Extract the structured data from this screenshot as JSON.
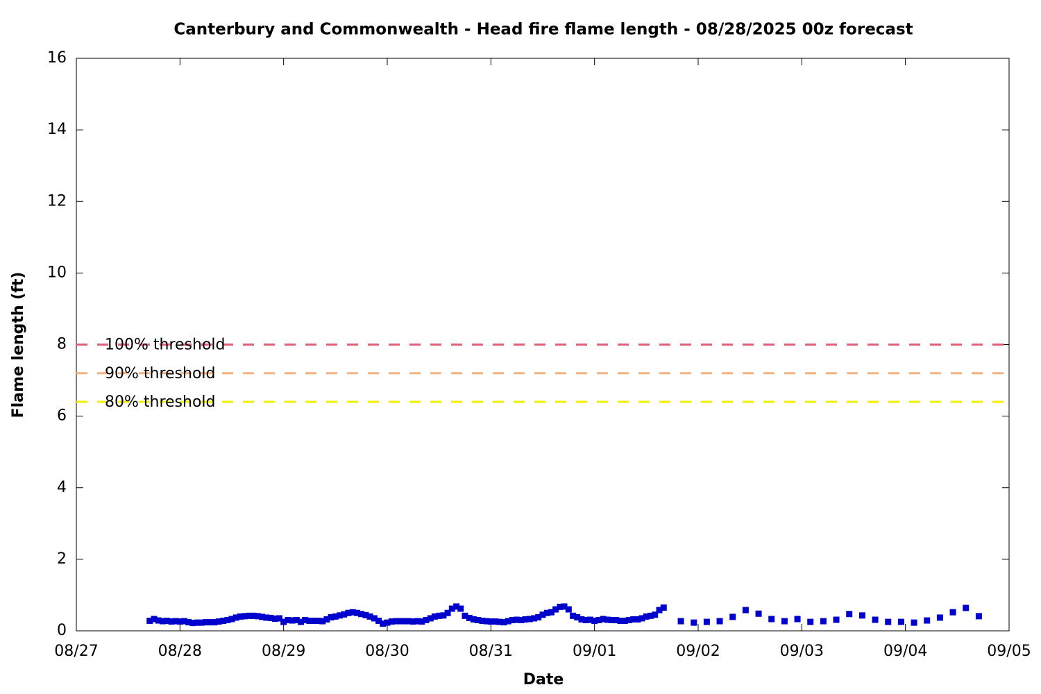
{
  "chart_data": {
    "type": "scatter",
    "title": "Canterbury and Commonwealth - Head fire flame length - 08/28/2025 00z forecast",
    "xlabel": "Date",
    "ylabel": "Flame length (ft)",
    "series": [
      {
        "color": "#0000cc",
        "x": [
          0.708,
          0.75,
          0.792,
          0.833,
          0.875,
          0.917,
          0.958,
          1,
          1.042,
          1.083,
          1.125,
          1.167,
          1.208,
          1.25,
          1.292,
          1.333,
          1.375,
          1.417,
          1.458,
          1.5,
          1.542,
          1.583,
          1.625,
          1.667,
          1.708,
          1.75,
          1.792,
          1.833,
          1.875,
          1.917,
          1.958,
          2,
          2.042,
          2.083,
          2.125,
          2.167,
          2.208,
          2.25,
          2.292,
          2.333,
          2.375,
          2.417,
          2.458,
          2.5,
          2.542,
          2.583,
          2.625,
          2.667,
          2.708,
          2.75,
          2.792,
          2.833,
          2.875,
          2.917,
          2.958,
          3,
          3.042,
          3.083,
          3.125,
          3.167,
          3.208,
          3.25,
          3.292,
          3.333,
          3.375,
          3.417,
          3.458,
          3.5,
          3.542,
          3.583,
          3.625,
          3.667,
          3.708,
          3.75,
          3.792,
          3.833,
          3.875,
          3.917,
          3.958,
          4,
          4.042,
          4.083,
          4.125,
          4.167,
          4.208,
          4.25,
          4.292,
          4.333,
          4.375,
          4.417,
          4.458,
          4.5,
          4.542,
          4.583,
          4.625,
          4.667,
          4.708,
          4.75,
          4.792,
          4.833,
          4.875,
          4.917,
          4.958,
          5,
          5.042,
          5.083,
          5.125,
          5.167,
          5.208,
          5.25,
          5.292,
          5.333,
          5.375,
          5.417,
          5.458,
          5.5,
          5.542,
          5.583,
          5.625,
          5.667,
          5.833,
          5.958,
          6.083,
          6.208,
          6.333,
          6.458,
          6.583,
          6.708,
          6.833,
          6.958,
          7.083,
          7.208,
          7.333,
          7.458,
          7.583,
          7.708,
          7.833,
          7.958,
          8.083,
          8.208,
          8.333,
          8.458,
          8.583,
          8.708
        ],
        "values": [
          0.28,
          0.33,
          0.29,
          0.27,
          0.28,
          0.26,
          0.27,
          0.26,
          0.27,
          0.24,
          0.22,
          0.23,
          0.23,
          0.24,
          0.24,
          0.24,
          0.26,
          0.28,
          0.3,
          0.33,
          0.37,
          0.4,
          0.41,
          0.42,
          0.42,
          0.41,
          0.39,
          0.37,
          0.36,
          0.34,
          0.35,
          0.25,
          0.3,
          0.29,
          0.3,
          0.25,
          0.3,
          0.28,
          0.28,
          0.28,
          0.27,
          0.32,
          0.38,
          0.4,
          0.43,
          0.46,
          0.5,
          0.52,
          0.5,
          0.47,
          0.44,
          0.4,
          0.35,
          0.28,
          0.2,
          0.23,
          0.26,
          0.27,
          0.27,
          0.27,
          0.27,
          0.26,
          0.27,
          0.26,
          0.3,
          0.35,
          0.4,
          0.42,
          0.43,
          0.5,
          0.62,
          0.68,
          0.62,
          0.42,
          0.36,
          0.32,
          0.3,
          0.28,
          0.27,
          0.26,
          0.26,
          0.25,
          0.24,
          0.27,
          0.3,
          0.31,
          0.3,
          0.32,
          0.33,
          0.35,
          0.38,
          0.45,
          0.5,
          0.52,
          0.6,
          0.67,
          0.68,
          0.6,
          0.42,
          0.38,
          0.32,
          0.3,
          0.31,
          0.28,
          0.3,
          0.33,
          0.31,
          0.3,
          0.3,
          0.28,
          0.28,
          0.3,
          0.32,
          0.32,
          0.35,
          0.4,
          0.42,
          0.45,
          0.58,
          0.65,
          0.27,
          0.23,
          0.25,
          0.27,
          0.39,
          0.58,
          0.48,
          0.33,
          0.27,
          0.33,
          0.25,
          0.27,
          0.31,
          0.47,
          0.43,
          0.31,
          0.25,
          0.25,
          0.23,
          0.29,
          0.37,
          0.52,
          0.64,
          0.41
        ]
      }
    ],
    "thresholds": [
      {
        "label": "100% threshold",
        "value": 8,
        "color": "#e0607a"
      },
      {
        "label": "90% threshold",
        "value": 7.2,
        "color": "#f4b482"
      },
      {
        "label": "80% threshold",
        "value": 6.4,
        "color": "#f0f000"
      }
    ],
    "xlim": [
      0,
      9
    ],
    "xticks": [
      {
        "value": 0,
        "label": "08/27"
      },
      {
        "value": 1,
        "label": "08/28"
      },
      {
        "value": 2,
        "label": "08/29"
      },
      {
        "value": 3,
        "label": "08/30"
      },
      {
        "value": 4,
        "label": "08/31"
      },
      {
        "value": 5,
        "label": "09/01"
      },
      {
        "value": 6,
        "label": "09/02"
      },
      {
        "value": 7,
        "label": "09/03"
      },
      {
        "value": 8,
        "label": "09/04"
      },
      {
        "value": 9,
        "label": "09/05"
      }
    ],
    "ylim": [
      0,
      16
    ],
    "yticks": [
      0,
      2,
      4,
      6,
      8,
      10,
      12,
      14,
      16
    ],
    "grid": false
  }
}
